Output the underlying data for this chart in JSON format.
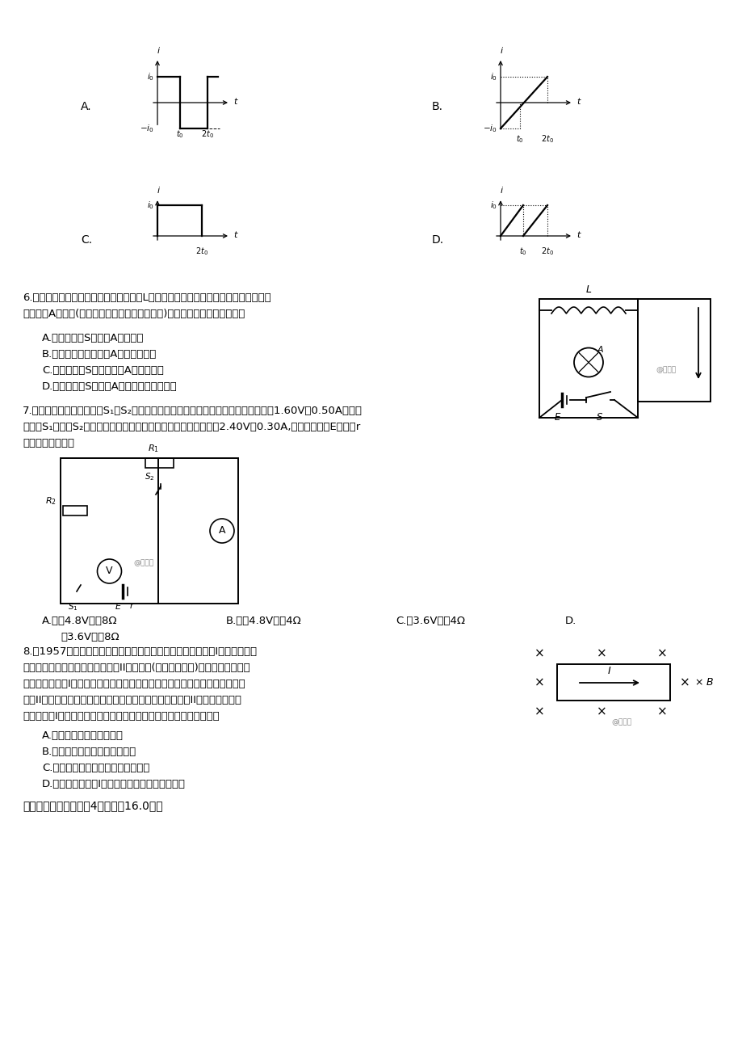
{
  "bg_color": "#ffffff",
  "q6_text_line1": "6.　如图所示是演示自感现象的电路图，L为自感系数很大的电感线圈，直流电阻大于",
  "q6_text_line2": "　　灯泡A的电阻(忽略灯泡的电阻随温度的变化)。下列说法正确的是（　）",
  "q6_optA": "A.　闭合开关S，灯泡A逐渐变亮",
  "q6_optB": "B.　电路稳定后，灯泡A被短路，熄灭",
  "q6_optC": "C.　断开开关S，通过灯泡A的电流向左",
  "q6_optD": "D.　断开开关S，灯泡A闪亮一下再逐渐熄灭",
  "q7_text_line1": "7.　如图所示电路，当开关S₁、S₂都闭合时，理想电压表和理想电流表的示数分别为1.60V和0.50A；当开",
  "q7_text_line2": "　　关S₁闭合、S₂断开时，理想电压表和理想电流表的示数分别为2.40V和0.30A,则电源电动势E和内阻r",
  "q7_text_line3": "　　分别为（　）",
  "q7_optA": "A.　　4.8V，　8Ω",
  "q7_optB": "B.　　4.8V，　4Ω",
  "q7_optC": "C.　3.6V，　4Ω",
  "q7_optD": "D.",
  "q7_optD2": "　3.6V，　8Ω",
  "q8_text_line1": "8.　1957年，科学家首先提出了两类超导体的概念，一类称为I型超导体，主",
  "q8_text_line2": "　　要是金属超导体，另一类称为II型超导体(截流子为电子)，主要是合金和陶",
  "q8_text_line3": "　　瓷超导体。I型超导体对磁场有屏蔽作用，即磁场无法进入超导体内部，而",
  "q8_text_line4": "　　II型超导体则不同，它允许磁场通过。现将一块长方体II型超导体通入稳",
  "q8_text_line5": "　　恒电流I后放入匀强磁场中，如图所示。下列说法正确的是（　）",
  "q8_optA": "A.　洛伦兹力对电子做正功",
  "q8_optB": "B.　超导体内部形成向下的电场",
  "q8_optC": "C.　超导体内部，电场能转化为热能",
  "q8_optD": "D.　超导体中电流I越大，超导体内部的电场越强",
  "sec2": "二、多选题（本大题共4小题，共16.0分）"
}
